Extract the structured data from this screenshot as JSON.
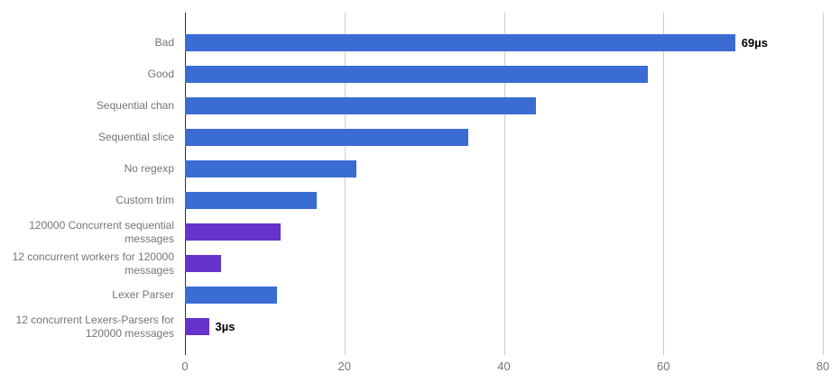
{
  "chart_data": {
    "type": "bar",
    "orientation": "horizontal",
    "title": "",
    "xlabel": "",
    "ylabel": "",
    "xlim": [
      0,
      80
    ],
    "x_ticks": [
      "0",
      "20",
      "40",
      "60",
      "80"
    ],
    "x_tick_values": [
      0,
      20,
      40,
      60,
      80
    ],
    "grid": true,
    "legend": "none",
    "unit": "µs",
    "colors": {
      "blue": "#3b6cd4",
      "purple": "#6633cc"
    },
    "axis_colors": {
      "gridline": "#cccccc",
      "baseline": "#333333",
      "tick_label": "#757575",
      "category_label": "#757575"
    },
    "bars": [
      {
        "label": "Bad",
        "value": 69,
        "color": "blue",
        "annotation": "69µs"
      },
      {
        "label": "Good",
        "value": 58,
        "color": "blue",
        "annotation": ""
      },
      {
        "label": "Sequential chan",
        "value": 44,
        "color": "blue",
        "annotation": ""
      },
      {
        "label": "Sequential slice",
        "value": 35.5,
        "color": "blue",
        "annotation": ""
      },
      {
        "label": "No regexp",
        "value": 21.5,
        "color": "blue",
        "annotation": ""
      },
      {
        "label": "Custom trim",
        "value": 16.5,
        "color": "blue",
        "annotation": ""
      },
      {
        "label": "120000 Concurrent sequential messages",
        "value": 12,
        "color": "purple",
        "annotation": ""
      },
      {
        "label": "12 concurrent workers for 120000 messages",
        "value": 4.5,
        "color": "purple",
        "annotation": ""
      },
      {
        "label": "Lexer Parser",
        "value": 11.5,
        "color": "blue",
        "annotation": ""
      },
      {
        "label": "12 concurrent Lexers-Parsers for 120000 messages",
        "value": 3,
        "color": "purple",
        "annotation": "3µs"
      }
    ]
  }
}
